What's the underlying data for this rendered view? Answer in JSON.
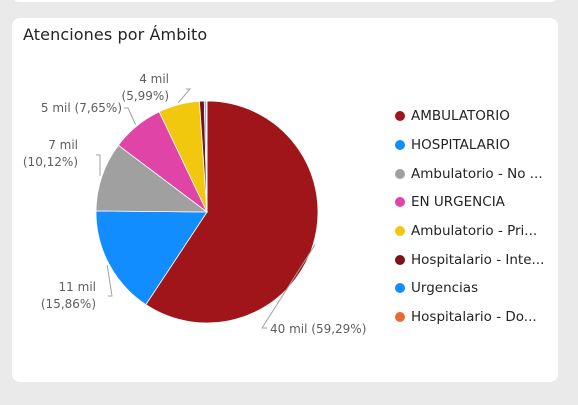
{
  "chart_data": {
    "type": "pie",
    "title": "Atenciones por Ámbito",
    "series": [
      {
        "name": "AMBULATORIO",
        "legend_label": "AMBULATORIO",
        "value": 59.29,
        "value_label": "40 mil",
        "pct_label": "(59,29%)",
        "color": "#a01519"
      },
      {
        "name": "HOSPITALARIO",
        "legend_label": "HOSPITALARIO",
        "value": 15.86,
        "value_label": "11 mil",
        "pct_label": "(15,86%)",
        "color": "#118dff"
      },
      {
        "name": "Ambulatorio - No ...",
        "legend_label": "Ambulatorio - No ...",
        "value": 10.12,
        "value_label": "7 mil",
        "pct_label": "(10,12%)",
        "color": "#a0a0a0"
      },
      {
        "name": "EN URGENCIA",
        "legend_label": "EN URGENCIA",
        "value": 7.65,
        "value_label": "5 mil",
        "pct_label": "(7,65%)",
        "color": "#e044a7"
      },
      {
        "name": "Ambulatorio - Pri...",
        "legend_label": "Ambulatorio - Pri...",
        "value": 5.99,
        "value_label": "4 mil",
        "pct_label": "(5,99%)",
        "color": "#f2c80f"
      },
      {
        "name": "Hospitalario - Inte...",
        "legend_label": "Hospitalario - Inte...",
        "value": 0.7,
        "value_label": "",
        "pct_label": "",
        "color": "#7a1216"
      },
      {
        "name": "Urgencias",
        "legend_label": "Urgencias",
        "value": 0.25,
        "value_label": "",
        "pct_label": "",
        "color": "#118dff"
      },
      {
        "name": "Hospitalario - Do...",
        "legend_label": "Hospitalario - Do...",
        "value": 0.14,
        "value_label": "",
        "pct_label": "",
        "color": "#e66c37"
      }
    ],
    "legend_position": "right"
  }
}
